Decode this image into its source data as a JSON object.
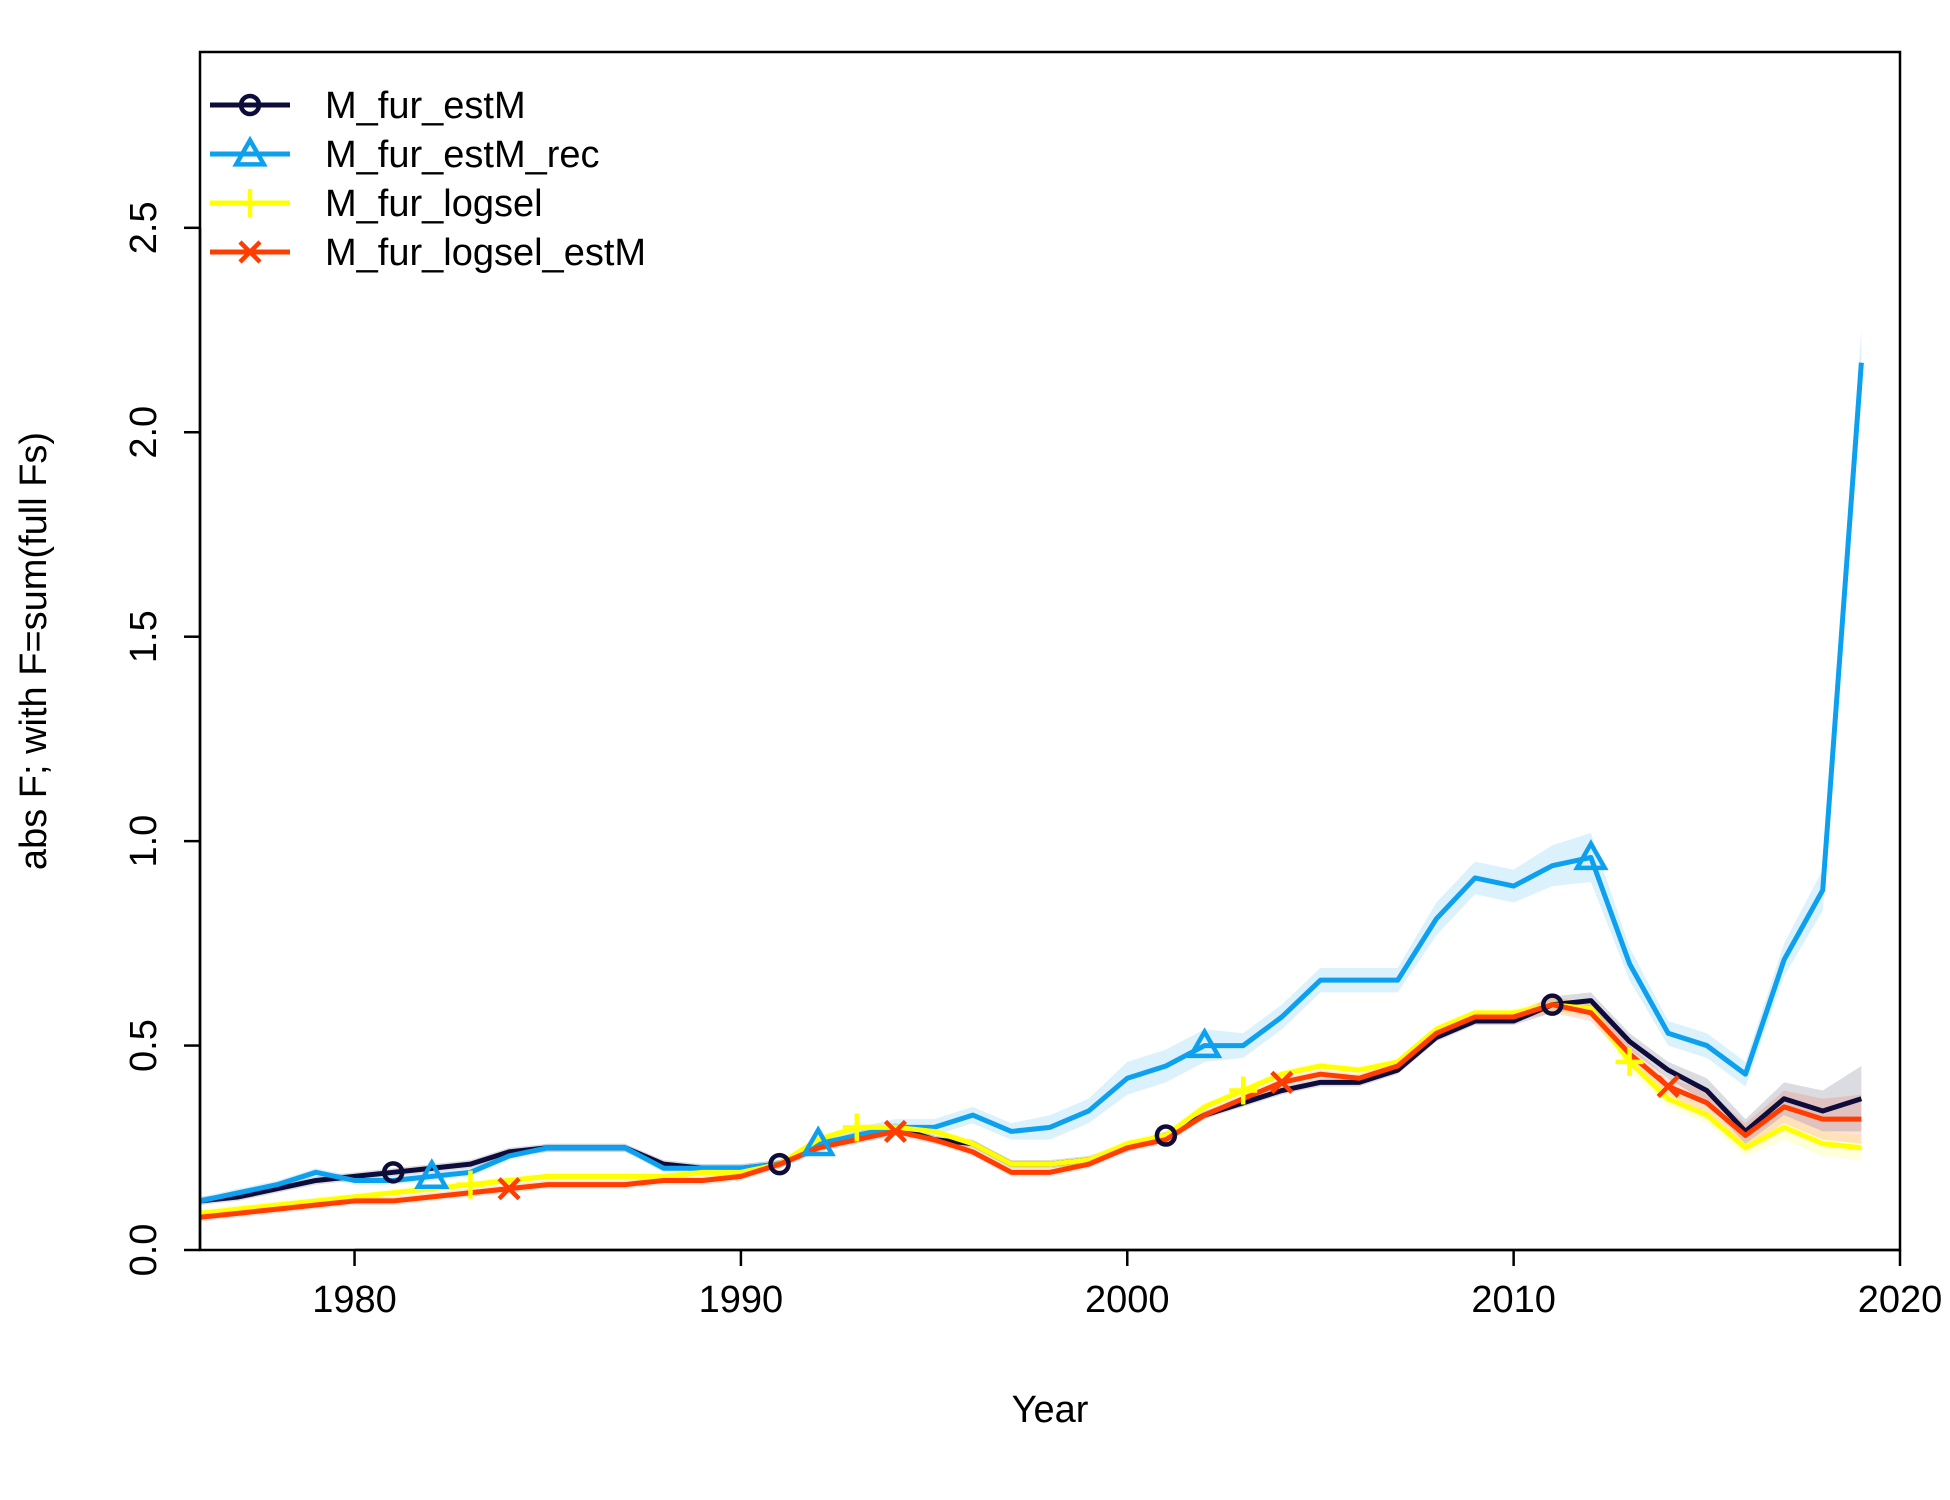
{
  "chart_data": {
    "type": "line",
    "xlabel": "Year",
    "ylabel": "abs F; with F=sum(full Fs)",
    "xlim": [
      1976,
      2020
    ],
    "ylim": [
      0,
      2.93
    ],
    "xticks": [
      1980,
      1990,
      2000,
      2010,
      2020
    ],
    "yticks": [
      0.0,
      0.5,
      1.0,
      1.5,
      2.0,
      2.5
    ],
    "ytick_labels": [
      "0.0",
      "0.5",
      "1.0",
      "1.5",
      "2.0",
      "2.5"
    ],
    "legend_position": "top-left",
    "grid": false,
    "x": [
      1976,
      1977,
      1978,
      1979,
      1980,
      1981,
      1982,
      1983,
      1984,
      1985,
      1986,
      1987,
      1988,
      1989,
      1990,
      1991,
      1992,
      1993,
      1994,
      1995,
      1996,
      1997,
      1998,
      1999,
      2000,
      2001,
      2002,
      2003,
      2004,
      2005,
      2006,
      2007,
      2008,
      2009,
      2010,
      2011,
      2012,
      2013,
      2014,
      2015,
      2016,
      2017,
      2018,
      2019
    ],
    "series": [
      {
        "name": "M_fur_estM",
        "color": "#0d0c3a",
        "marker": "circle",
        "marker_years": [
          1981,
          1991,
          2001,
          2011
        ],
        "values": [
          0.12,
          0.13,
          0.15,
          0.17,
          0.18,
          0.19,
          0.2,
          0.21,
          0.24,
          0.25,
          0.25,
          0.25,
          0.21,
          0.2,
          0.2,
          0.21,
          0.25,
          0.28,
          0.3,
          0.27,
          0.26,
          0.21,
          0.21,
          0.22,
          0.25,
          0.28,
          0.33,
          0.36,
          0.39,
          0.41,
          0.41,
          0.44,
          0.52,
          0.56,
          0.56,
          0.6,
          0.61,
          0.51,
          0.44,
          0.39,
          0.29,
          0.37,
          0.34,
          0.37
        ],
        "band": [
          0.01,
          0.01,
          0.01,
          0.01,
          0.01,
          0.01,
          0.01,
          0.01,
          0.01,
          0.01,
          0.01,
          0.01,
          0.01,
          0.01,
          0.01,
          0.01,
          0.01,
          0.01,
          0.01,
          0.01,
          0.01,
          0.01,
          0.01,
          0.01,
          0.01,
          0.01,
          0.01,
          0.01,
          0.01,
          0.01,
          0.01,
          0.01,
          0.01,
          0.01,
          0.01,
          0.02,
          0.02,
          0.02,
          0.02,
          0.03,
          0.03,
          0.04,
          0.05,
          0.08
        ]
      },
      {
        "name": "M_fur_estM_rec",
        "color": "#0da0ee",
        "marker": "triangle",
        "marker_years": [
          1982,
          1992,
          2002,
          2012
        ],
        "values": [
          0.12,
          0.14,
          0.16,
          0.19,
          0.17,
          0.17,
          0.18,
          0.19,
          0.23,
          0.25,
          0.25,
          0.25,
          0.2,
          0.2,
          0.2,
          0.21,
          0.26,
          0.28,
          0.3,
          0.3,
          0.33,
          0.29,
          0.3,
          0.34,
          0.42,
          0.45,
          0.5,
          0.5,
          0.57,
          0.66,
          0.66,
          0.66,
          0.81,
          0.91,
          0.89,
          0.94,
          0.96,
          0.7,
          0.53,
          0.5,
          0.43,
          0.71,
          0.88,
          2.17
        ],
        "band": [
          0.01,
          0.01,
          0.01,
          0.01,
          0.01,
          0.01,
          0.01,
          0.01,
          0.01,
          0.01,
          0.01,
          0.01,
          0.01,
          0.01,
          0.01,
          0.01,
          0.01,
          0.02,
          0.02,
          0.02,
          0.02,
          0.02,
          0.03,
          0.03,
          0.04,
          0.04,
          0.04,
          0.03,
          0.03,
          0.03,
          0.03,
          0.03,
          0.04,
          0.04,
          0.04,
          0.05,
          0.06,
          0.04,
          0.03,
          0.03,
          0.03,
          0.04,
          0.05,
          0.08
        ]
      },
      {
        "name": "M_fur_logsel",
        "color": "#ffff00",
        "marker": "plus",
        "marker_years": [
          1983,
          1993,
          2003,
          2013
        ],
        "values": [
          0.09,
          0.1,
          0.11,
          0.12,
          0.13,
          0.14,
          0.15,
          0.16,
          0.17,
          0.18,
          0.18,
          0.18,
          0.18,
          0.19,
          0.19,
          0.21,
          0.27,
          0.3,
          0.3,
          0.29,
          0.26,
          0.21,
          0.21,
          0.22,
          0.26,
          0.28,
          0.35,
          0.39,
          0.43,
          0.45,
          0.44,
          0.46,
          0.54,
          0.58,
          0.58,
          0.6,
          0.59,
          0.46,
          0.37,
          0.33,
          0.25,
          0.3,
          0.26,
          0.25
        ],
        "band": [
          0.01,
          0.01,
          0.01,
          0.01,
          0.01,
          0.01,
          0.01,
          0.01,
          0.01,
          0.01,
          0.01,
          0.01,
          0.01,
          0.01,
          0.01,
          0.01,
          0.01,
          0.01,
          0.01,
          0.01,
          0.01,
          0.01,
          0.01,
          0.01,
          0.01,
          0.01,
          0.01,
          0.01,
          0.01,
          0.01,
          0.01,
          0.01,
          0.01,
          0.01,
          0.01,
          0.02,
          0.02,
          0.02,
          0.02,
          0.02,
          0.02,
          0.03,
          0.03,
          0.03
        ]
      },
      {
        "name": "M_fur_logsel_estM",
        "color": "#ff3d00",
        "marker": "cross",
        "marker_years": [
          1984,
          1994,
          2004,
          2014
        ],
        "values": [
          0.08,
          0.09,
          0.1,
          0.11,
          0.12,
          0.12,
          0.13,
          0.14,
          0.15,
          0.16,
          0.16,
          0.16,
          0.17,
          0.17,
          0.18,
          0.21,
          0.25,
          0.27,
          0.29,
          0.27,
          0.24,
          0.19,
          0.19,
          0.21,
          0.25,
          0.27,
          0.33,
          0.37,
          0.41,
          0.43,
          0.42,
          0.45,
          0.53,
          0.57,
          0.57,
          0.6,
          0.58,
          0.48,
          0.4,
          0.36,
          0.28,
          0.35,
          0.32,
          0.32
        ],
        "band": [
          0.01,
          0.01,
          0.01,
          0.01,
          0.01,
          0.01,
          0.01,
          0.01,
          0.01,
          0.01,
          0.01,
          0.01,
          0.01,
          0.01,
          0.01,
          0.01,
          0.01,
          0.01,
          0.01,
          0.01,
          0.01,
          0.01,
          0.01,
          0.01,
          0.01,
          0.01,
          0.01,
          0.01,
          0.01,
          0.01,
          0.01,
          0.01,
          0.01,
          0.01,
          0.01,
          0.02,
          0.02,
          0.02,
          0.02,
          0.03,
          0.03,
          0.04,
          0.05,
          0.06
        ]
      }
    ]
  }
}
